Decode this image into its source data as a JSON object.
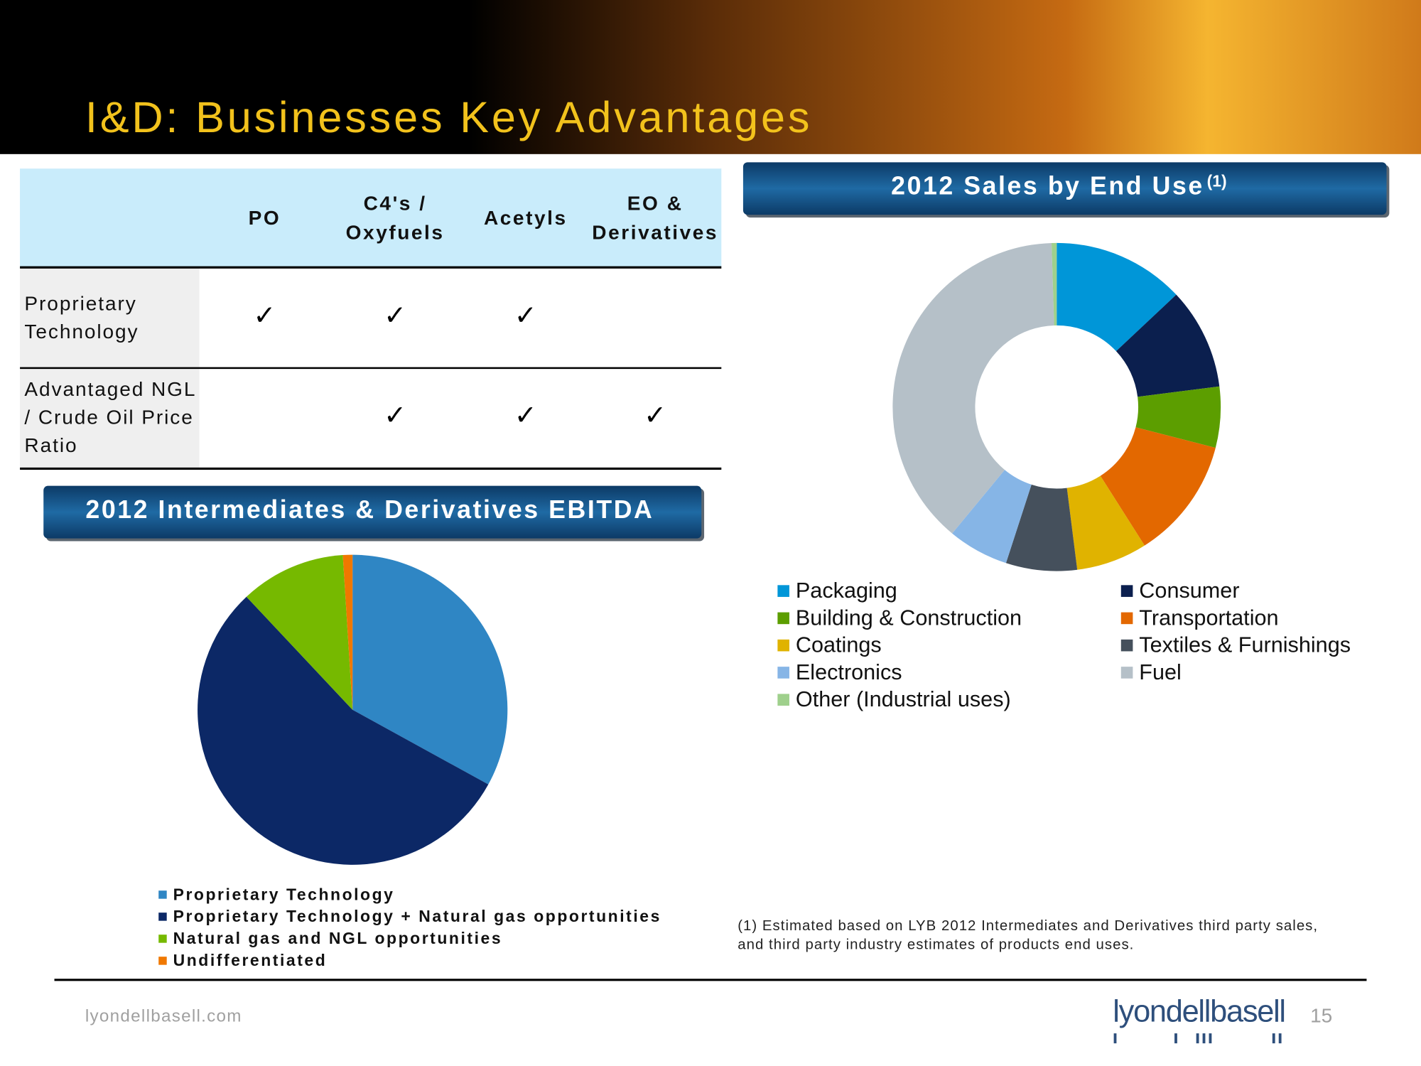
{
  "header": {
    "title": "I&D: Businesses Key Advantages"
  },
  "table": {
    "columns": [
      [
        "PO"
      ],
      [
        "C4's /",
        "Oxyfuels"
      ],
      [
        "Acetyls"
      ],
      [
        "EO &",
        "Derivatives"
      ]
    ],
    "rows": [
      {
        "label": [
          "Proprietary",
          "Technology"
        ],
        "cells": [
          "✓",
          "✓",
          "✓",
          null
        ]
      },
      {
        "label": [
          "Advantaged NGL",
          "/ Crude Oil Price",
          "Ratio"
        ],
        "cells": [
          null,
          "✓",
          "✓",
          "✓"
        ]
      }
    ]
  },
  "chart_data": [
    {
      "type": "pie",
      "title": "2012 Intermediates & Derivatives EBITDA",
      "categories": [
        "Proprietary Technology",
        "Proprietary Technology + Natural gas opportunities",
        "Natural gas and NGL opportunities",
        "Undifferentiated"
      ],
      "values": [
        33,
        55,
        11,
        1
      ],
      "colors": [
        "#2f86c4",
        "#0c2866",
        "#76b900",
        "#f07800"
      ]
    },
    {
      "type": "donut",
      "title": "2012 Sales by End Use",
      "title_note": "(1)",
      "categories": [
        "Packaging",
        "Consumer",
        "Building & Construction",
        "Transportation",
        "Coatings",
        "Textiles & Furnishings",
        "Electronics",
        "Fuel",
        "Other (Industrial uses)"
      ],
      "values": [
        13,
        10,
        6,
        12,
        7,
        7,
        6,
        38.5,
        0.5
      ],
      "colors": [
        "#0096d8",
        "#0b1f4e",
        "#5c9e00",
        "#e36800",
        "#e0b300",
        "#45505c",
        "#86b5e6",
        "#b5c0c8",
        "#9fd08c"
      ]
    }
  ],
  "footnote": [
    "(1) Estimated based on LYB 2012 Intermediates and Derivatives third party sales,",
    "and third party industry estimates of products end uses."
  ],
  "footer": {
    "url": "lyondellbasell.com",
    "logo": "lyondellbasell",
    "page": 15
  }
}
